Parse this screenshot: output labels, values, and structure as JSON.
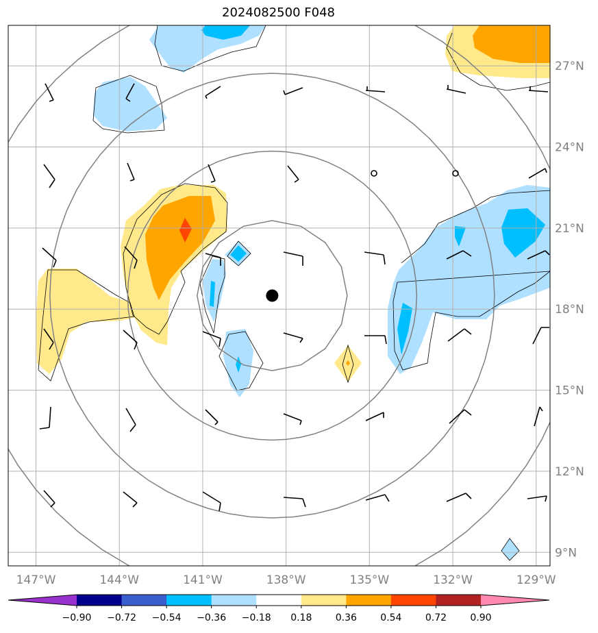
{
  "title": "2024082500 F048",
  "map": {
    "lon_range": [
      -148,
      -128.5
    ],
    "lat_range": [
      8.5,
      28.5
    ],
    "lon_ticks": [
      {
        "value": -147,
        "label": "147°W"
      },
      {
        "value": -144,
        "label": "144°W"
      },
      {
        "value": -141,
        "label": "141°W"
      },
      {
        "value": -138,
        "label": "138°W"
      },
      {
        "value": -135,
        "label": "135°W"
      },
      {
        "value": -132,
        "label": "132°W"
      },
      {
        "value": -129,
        "label": "129°W"
      }
    ],
    "lat_ticks": [
      {
        "value": 9,
        "label": "9°N"
      },
      {
        "value": 12,
        "label": "12°N"
      },
      {
        "value": 15,
        "label": "15°N"
      },
      {
        "value": 18,
        "label": "18°N"
      },
      {
        "value": 21,
        "label": "21°N"
      },
      {
        "value": 24,
        "label": "24°N"
      },
      {
        "value": 27,
        "label": "27°N"
      }
    ],
    "grid": true,
    "storm_center": {
      "lon": -138.5,
      "lat": 18.5
    },
    "range_rings_deg": [
      2.7,
      5.2,
      8.0,
      11.0
    ]
  },
  "colorbar": {
    "levels": [
      "−0.90",
      "−0.72",
      "−0.54",
      "−0.36",
      "−0.18",
      "0.18",
      "0.36",
      "0.54",
      "0.72",
      "0.90"
    ],
    "colors": [
      "#9932cc",
      "#00008b",
      "#3a5fcd",
      "#00bfff",
      "#b0e0ff",
      "#ffffff",
      "#ffe98a",
      "#ffa500",
      "#ff4500",
      "#b22222",
      "#ff88b0"
    ]
  },
  "colors": {
    "light_blue": "#b0e0ff",
    "blue": "#00bfff",
    "yellow": "#ffe98a",
    "orange": "#ffa500",
    "red_orange": "#ff4500"
  }
}
